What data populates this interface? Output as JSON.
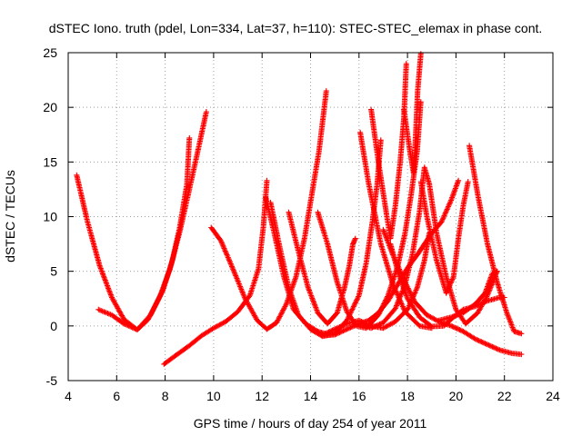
{
  "chart_data": {
    "type": "scatter",
    "title": "dSTEC Iono. truth (pdel, Lon=334, Lat=37, h=110): STEC-STEC_elemax in phase cont.",
    "xlabel": "GPS time / hours of day 254 of year 2011",
    "ylabel": "dSTEC  / TECUs",
    "xlim": [
      4,
      24
    ],
    "ylim": [
      -5,
      25
    ],
    "xticks": [
      4,
      6,
      8,
      10,
      12,
      14,
      16,
      18,
      20,
      22,
      24
    ],
    "yticks": [
      -5,
      0,
      5,
      10,
      15,
      20,
      25
    ],
    "xtick_labels": [
      "4",
      "6",
      "8",
      "10",
      "12",
      "14",
      "16",
      "18",
      "20",
      "22",
      "24"
    ],
    "ytick_labels": [
      "-5",
      "0",
      "5",
      "10",
      "15",
      "20",
      "25"
    ],
    "grid": true,
    "legend": "none",
    "marker": "+",
    "color": "#ff0000",
    "series": [
      {
        "points": [
          [
            4.35,
            13.8
          ],
          [
            4.8,
            9.5
          ],
          [
            5.3,
            5.5
          ],
          [
            5.8,
            2.6
          ],
          [
            6.3,
            0.6
          ],
          [
            6.85,
            -0.35
          ],
          [
            7.3,
            0.6
          ],
          [
            7.8,
            2.8
          ],
          [
            8.2,
            5.2
          ],
          [
            8.6,
            8.6
          ],
          [
            8.95,
            12.0
          ],
          [
            9.3,
            15.5
          ],
          [
            9.7,
            19.6
          ]
        ]
      },
      {
        "points": [
          [
            5.25,
            1.5
          ],
          [
            5.8,
            1.0
          ],
          [
            6.3,
            0.2
          ],
          [
            6.85,
            -0.35
          ],
          [
            7.4,
            1.0
          ],
          [
            7.9,
            3.2
          ],
          [
            8.3,
            6.0
          ],
          [
            8.6,
            9.0
          ],
          [
            8.9,
            13.0
          ],
          [
            9.0,
            17.2
          ]
        ]
      },
      {
        "points": [
          [
            7.95,
            -3.5
          ],
          [
            8.5,
            -2.6
          ],
          [
            9.0,
            -1.8
          ],
          [
            9.5,
            -0.9
          ],
          [
            10.0,
            -0.2
          ],
          [
            10.5,
            0.4
          ],
          [
            11.0,
            1.3
          ],
          [
            11.5,
            2.8
          ],
          [
            11.85,
            5.2
          ],
          [
            12.05,
            9.0
          ],
          [
            12.2,
            13.3
          ]
        ]
      },
      {
        "points": [
          [
            9.9,
            9.0
          ],
          [
            10.3,
            7.8
          ],
          [
            10.8,
            5.2
          ],
          [
            11.3,
            2.5
          ],
          [
            11.8,
            0.5
          ],
          [
            12.2,
            -0.3
          ],
          [
            12.6,
            0.3
          ],
          [
            13.0,
            2.0
          ],
          [
            13.4,
            4.5
          ],
          [
            13.75,
            8.0
          ],
          [
            14.05,
            12.0
          ],
          [
            14.35,
            16.0
          ],
          [
            14.65,
            21.5
          ]
        ]
      },
      {
        "points": [
          [
            12.15,
            11.8
          ],
          [
            12.5,
            8.5
          ],
          [
            12.9,
            4.5
          ],
          [
            13.3,
            1.5
          ],
          [
            13.8,
            0.2
          ],
          [
            14.3,
            -0.5
          ],
          [
            14.6,
            -0.7
          ]
        ]
      },
      {
        "points": [
          [
            12.35,
            11.3
          ],
          [
            12.7,
            7.5
          ],
          [
            13.1,
            3.5
          ],
          [
            13.5,
            1.0
          ],
          [
            14.0,
            -0.3
          ],
          [
            14.5,
            -0.95
          ],
          [
            15.0,
            -0.7
          ],
          [
            15.5,
            0.5
          ],
          [
            16.0,
            2.8
          ],
          [
            16.3,
            5.8
          ],
          [
            16.55,
            9.5
          ],
          [
            16.75,
            13.0
          ],
          [
            16.9,
            17.0
          ]
        ]
      },
      {
        "points": [
          [
            13.1,
            10.4
          ],
          [
            13.5,
            6.8
          ],
          [
            13.9,
            3.5
          ],
          [
            14.3,
            1.2
          ],
          [
            14.7,
            0.2
          ],
          [
            15.1,
            1.2
          ],
          [
            15.4,
            3.5
          ],
          [
            15.6,
            5.5
          ],
          [
            15.75,
            7.5
          ],
          [
            15.85,
            8.0
          ]
        ]
      },
      {
        "points": [
          [
            14.3,
            10.4
          ],
          [
            14.7,
            7.5
          ],
          [
            15.1,
            4.0
          ],
          [
            15.5,
            1.3
          ],
          [
            15.9,
            0.0
          ],
          [
            16.3,
            -0.2
          ],
          [
            16.8,
            1.0
          ],
          [
            17.2,
            2.8
          ],
          [
            17.6,
            5.5
          ],
          [
            17.9,
            8.5
          ],
          [
            18.15,
            12.0
          ],
          [
            18.4,
            16.0
          ],
          [
            18.55,
            20.5
          ]
        ]
      },
      {
        "points": [
          [
            16.05,
            17.7
          ],
          [
            16.4,
            13.0
          ],
          [
            16.9,
            7.5
          ],
          [
            17.4,
            3.8
          ],
          [
            17.9,
            1.3
          ],
          [
            18.5,
            0.0
          ],
          [
            19.0,
            -0.2
          ]
        ]
      },
      {
        "points": [
          [
            16.5,
            19.8
          ],
          [
            16.8,
            15.0
          ],
          [
            17.15,
            10.0
          ],
          [
            17.3,
            8.0
          ],
          [
            17.5,
            11.0
          ],
          [
            17.7,
            15.0
          ],
          [
            17.85,
            19.0
          ],
          [
            17.95,
            24.0
          ]
        ]
      },
      {
        "points": [
          [
            17.85,
            19.8
          ],
          [
            18.1,
            16.0
          ],
          [
            18.25,
            14.0
          ],
          [
            18.35,
            18.0
          ],
          [
            18.42,
            21.5
          ],
          [
            18.55,
            24.9
          ]
        ]
      },
      {
        "points": [
          [
            17.0,
            8.8
          ],
          [
            17.4,
            6.5
          ],
          [
            17.9,
            4.0
          ],
          [
            18.3,
            2.2
          ],
          [
            18.8,
            1.0
          ],
          [
            19.3,
            0.4
          ],
          [
            19.8,
            0.0
          ],
          [
            20.3,
            -0.5
          ],
          [
            20.8,
            -1.2
          ],
          [
            21.3,
            -1.7
          ],
          [
            21.8,
            -2.2
          ],
          [
            22.3,
            -2.5
          ],
          [
            22.7,
            -2.6
          ]
        ]
      },
      {
        "points": [
          [
            16.0,
            0.2
          ],
          [
            16.5,
            -0.2
          ],
          [
            17.0,
            0.3
          ],
          [
            17.5,
            1.6
          ],
          [
            17.9,
            3.8
          ],
          [
            18.2,
            6.5
          ],
          [
            18.5,
            10.5
          ],
          [
            18.7,
            14.5
          ],
          [
            18.9,
            13.0
          ],
          [
            19.2,
            8.5
          ],
          [
            19.6,
            4.5
          ],
          [
            20.0,
            1.5
          ],
          [
            20.4,
            0.2
          ],
          [
            20.9,
            1.2
          ],
          [
            21.3,
            2.8
          ],
          [
            21.7,
            5.0
          ]
        ]
      },
      {
        "points": [
          [
            17.3,
            7.5
          ],
          [
            17.6,
            5.0
          ],
          [
            18.0,
            2.5
          ],
          [
            18.5,
            0.8
          ],
          [
            19.0,
            -0.05
          ],
          [
            19.5,
            0.0
          ],
          [
            19.9,
            0.8
          ],
          [
            20.3,
            1.5
          ],
          [
            20.8,
            1.8
          ],
          [
            21.3,
            2.3
          ],
          [
            21.8,
            2.6
          ],
          [
            22.0,
            2.6
          ]
        ]
      },
      {
        "points": [
          [
            18.55,
            13.2
          ],
          [
            18.8,
            10.0
          ],
          [
            19.2,
            6.0
          ],
          [
            19.6,
            3.0
          ],
          [
            19.9,
            4.5
          ],
          [
            20.1,
            8.0
          ],
          [
            20.3,
            11.0
          ],
          [
            20.5,
            13.2
          ]
        ]
      },
      {
        "points": [
          [
            20.55,
            16.5
          ],
          [
            20.9,
            12.0
          ],
          [
            21.3,
            7.5
          ],
          [
            21.7,
            4.0
          ],
          [
            22.1,
            1.2
          ],
          [
            22.4,
            -0.5
          ],
          [
            22.7,
            -0.7
          ]
        ]
      },
      {
        "points": [
          [
            14.0,
            -0.3
          ],
          [
            14.5,
            -0.9
          ],
          [
            15.0,
            -0.8
          ],
          [
            15.5,
            -0.3
          ],
          [
            16.0,
            0.2
          ],
          [
            16.4,
            0.5
          ],
          [
            16.8,
            1.2
          ],
          [
            17.2,
            2.3
          ],
          [
            17.6,
            3.8
          ],
          [
            18.0,
            5.3
          ],
          [
            18.4,
            6.5
          ],
          [
            18.7,
            7.5
          ],
          [
            19.0,
            8.5
          ],
          [
            19.4,
            9.5
          ],
          [
            19.8,
            11.5
          ],
          [
            20.1,
            13.3
          ]
        ]
      },
      {
        "points": [
          [
            19.3,
            0.5
          ],
          [
            19.8,
            0.8
          ],
          [
            20.3,
            1.2
          ],
          [
            20.8,
            2.0
          ],
          [
            21.2,
            3.0
          ],
          [
            21.5,
            4.8
          ],
          [
            21.7,
            5.0
          ]
        ]
      },
      {
        "points": [
          [
            14.6,
            -0.7
          ],
          [
            15.0,
            -0.3
          ],
          [
            15.5,
            0.2
          ],
          [
            16.0,
            0.5
          ],
          [
            16.5,
            0.0
          ],
          [
            17.0,
            -0.2
          ],
          [
            17.5,
            0.4
          ],
          [
            18.0,
            1.5
          ],
          [
            18.4,
            3.5
          ],
          [
            18.7,
            6.0
          ],
          [
            18.9,
            8.5
          ]
        ]
      }
    ]
  }
}
